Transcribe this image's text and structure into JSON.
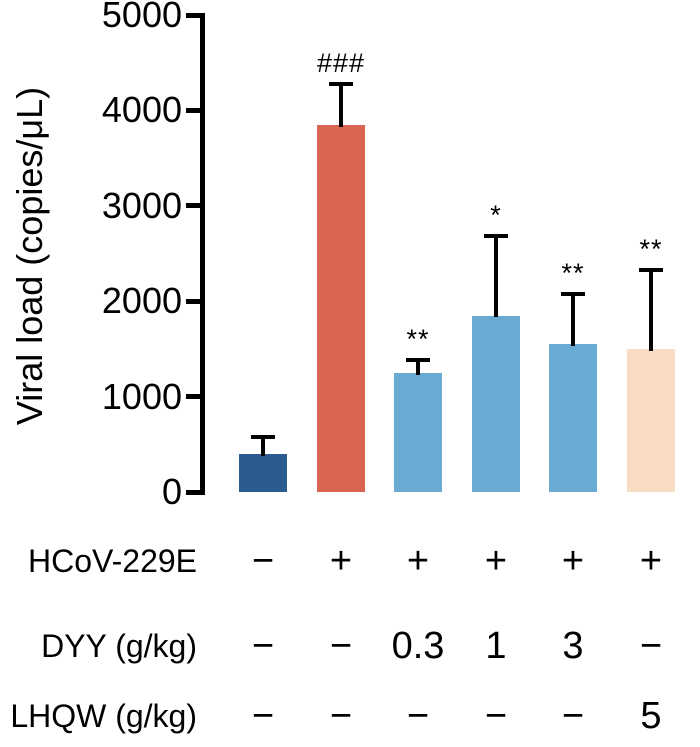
{
  "chart_data": {
    "type": "bar",
    "title": "",
    "ylabel": "Viral load (copies/μL)",
    "xlabel": "",
    "ylim": [
      0,
      5000
    ],
    "yticks": [
      0,
      1000,
      2000,
      3000,
      4000,
      5000
    ],
    "grid": false,
    "legend": "none",
    "axis_color": "#000000",
    "series": [
      {
        "value": 400,
        "error_upper": 200,
        "color": "#2c5c8f",
        "annotation": ""
      },
      {
        "value": 3850,
        "error_upper": 450,
        "color": "#d96452",
        "annotation": "###"
      },
      {
        "value": 1250,
        "error_upper": 150,
        "color": "#6aabd4",
        "annotation": "**"
      },
      {
        "value": 1850,
        "error_upper": 850,
        "color": "#6aabd4",
        "annotation": "*"
      },
      {
        "value": 1550,
        "error_upper": 550,
        "color": "#6aabd4",
        "annotation": "**"
      },
      {
        "value": 1500,
        "error_upper": 850,
        "color": "#f9ddc2",
        "annotation": "**"
      }
    ],
    "group_rows": [
      {
        "label": "HCoV-229E",
        "values": [
          "−",
          "+",
          "+",
          "+",
          "+",
          "+"
        ]
      },
      {
        "label": "DYY (g/kg)",
        "values": [
          "−",
          "−",
          "0.3",
          "1",
          "3",
          "−"
        ]
      },
      {
        "label": "LHQW (g/kg)",
        "values": [
          "−",
          "−",
          "−",
          "−",
          "−",
          "5"
        ]
      }
    ]
  }
}
